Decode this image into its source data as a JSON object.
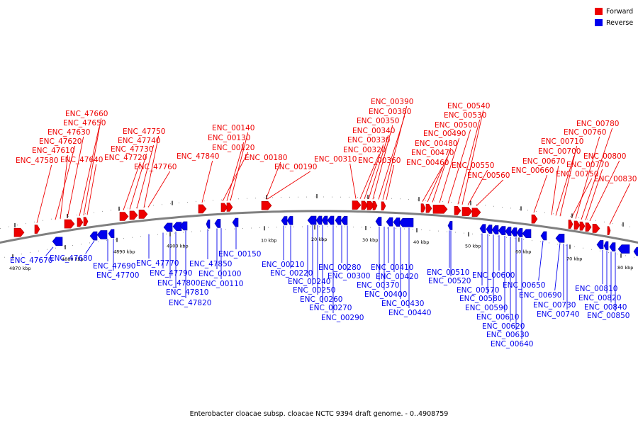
{
  "caption": "Enterobacter cloacae subsp. cloacae NCTC 9394 draft genome. - 0..4908759",
  "legend": {
    "forward": {
      "label": "Forward",
      "color": "#ee0000"
    },
    "reverse": {
      "label": "Reverse",
      "color": "#0000ee"
    }
  },
  "scale_ticks": [
    "4870 kbp",
    "4880 kbp",
    "4890 kbp",
    "4900 kbp",
    "10 kbp",
    "20 kbp",
    "30 kbp",
    "40 kbp",
    "50 kbp",
    "60 kbp",
    "70 kbp",
    "80 kbp"
  ],
  "forward_genes": [
    "ENC_47580",
    "ENC_47620",
    "ENC_47610",
    "ENC_47630",
    "ENC_47650",
    "ENC_47660",
    "ENC_47640",
    "ENC_47720",
    "ENC_47730",
    "ENC_47740",
    "ENC_47750",
    "ENC_47760",
    "ENC_47840",
    "ENC_00120",
    "ENC_00130",
    "ENC_00140",
    "ENC_00180",
    "ENC_00190",
    "ENC_00310",
    "ENC_00320",
    "ENC_00330",
    "ENC_00340",
    "ENC_00350",
    "ENC_00380",
    "ENC_00390",
    "ENC_00360",
    "ENC_00460",
    "ENC_00470",
    "ENC_00480",
    "ENC_00490",
    "ENC_00500",
    "ENC_00530",
    "ENC_00540",
    "ENC_00550",
    "ENC_00560",
    "ENC_00660",
    "ENC_00670",
    "ENC_00700",
    "ENC_00710",
    "ENC_00750",
    "ENC_00760",
    "ENC_00780",
    "ENC_00770",
    "ENC_00800",
    "ENC_00830"
  ],
  "reverse_genes": [
    "ENC_47670",
    "ENC_47680",
    "ENC_47690",
    "ENC_47700",
    "ENC_47770",
    "ENC_47790",
    "ENC_47800",
    "ENC_47810",
    "ENC_47820",
    "ENC_47850",
    "ENC_00100",
    "ENC_00110",
    "ENC_00150",
    "ENC_00210",
    "ENC_00220",
    "ENC_00240",
    "ENC_00250",
    "ENC_00260",
    "ENC_00270",
    "ENC_00280",
    "ENC_00290",
    "ENC_00300",
    "ENC_00370",
    "ENC_00400",
    "ENC_00410",
    "ENC_00420",
    "ENC_00430",
    "ENC_00440",
    "ENC_00510",
    "ENC_00520",
    "ENC_00570",
    "ENC_00580",
    "ENC_00590",
    "ENC_00600",
    "ENC_00610",
    "ENC_00620",
    "ENC_00630",
    "ENC_00640",
    "ENC_00650",
    "ENC_00690",
    "ENC_00730",
    "ENC_00740",
    "ENC_00810",
    "ENC_00820",
    "ENC_00840",
    "ENC_00850"
  ]
}
